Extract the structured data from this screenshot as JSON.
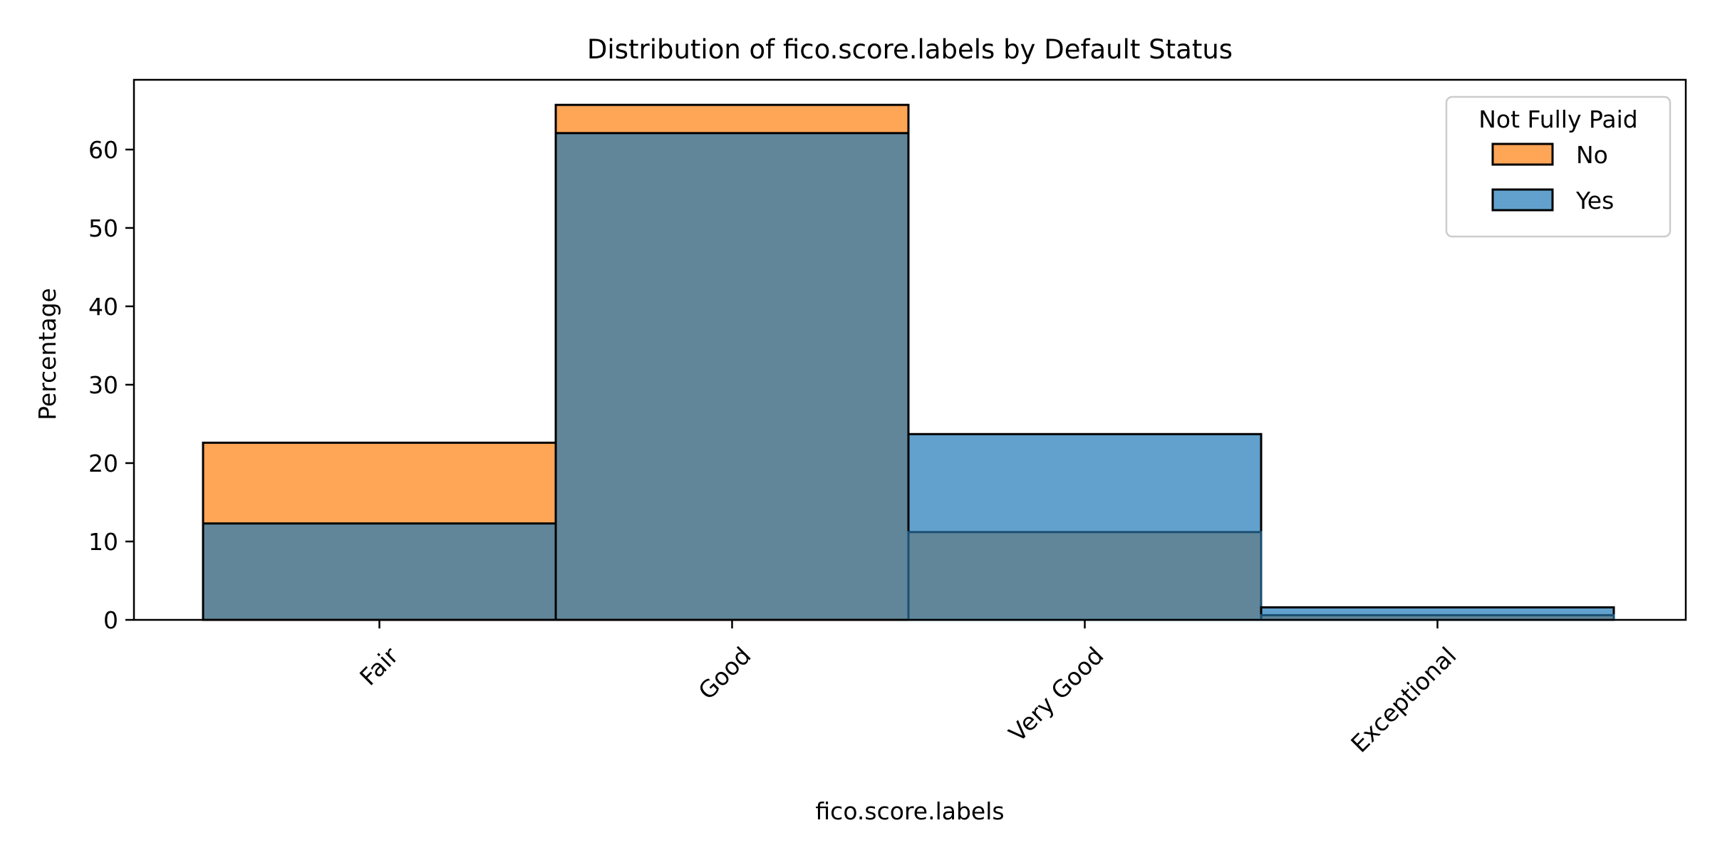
{
  "chart_data": {
    "type": "bar",
    "title": "Distribution of fico.score.labels by Default Status",
    "xlabel": "fico.score.labels",
    "ylabel": "Percentage",
    "categories": [
      "Fair",
      "Good",
      "Very Good",
      "Exceptional"
    ],
    "series": [
      {
        "name": "No",
        "color": "#ffa556",
        "values": [
          22.6,
          65.7,
          11.2,
          0.6
        ]
      },
      {
        "name": "Yes",
        "color": "#62a1cd",
        "values": [
          12.3,
          62.1,
          23.7,
          1.6
        ]
      }
    ],
    "overlap_color": "#61869a",
    "ylim": [
      0,
      68.9
    ],
    "yticks": [
      0,
      10,
      20,
      30,
      40,
      50,
      60
    ],
    "grid": false,
    "legend": {
      "title": "Not Fully Paid",
      "placement": "top-right"
    }
  }
}
